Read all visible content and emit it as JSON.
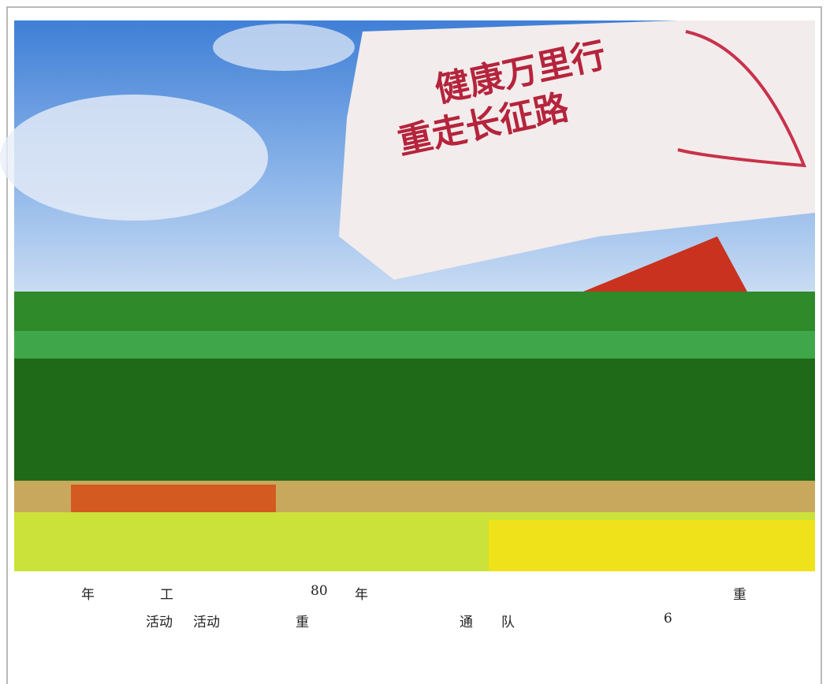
{
  "photo": {
    "flag_lines": [
      "健康万里行",
      "重走长征路"
    ]
  },
  "caption": {
    "line1": [
      "年",
      "工",
      "80",
      "年",
      "重"
    ],
    "line2": [
      "活动",
      "活动",
      "重",
      "通",
      "队",
      "6"
    ]
  }
}
